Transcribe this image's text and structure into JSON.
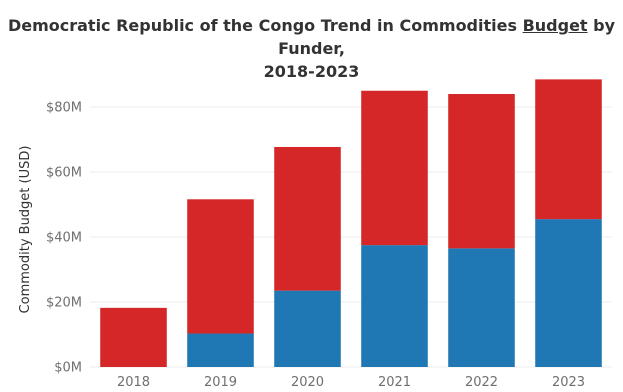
{
  "title": {
    "line1_before": "Democratic Republic of the Congo Trend in Commodities ",
    "line1_emph": "Budget",
    "line1_after": " by Funder,",
    "line2": "2018-2023"
  },
  "colors": {
    "series_a": "#1f77b4",
    "series_b": "#d62728",
    "grid": "#eeeeee",
    "tick_text": "#6f6f6f"
  },
  "chart_data": {
    "type": "bar",
    "stacked": true,
    "title": "Democratic Republic of the Congo Trend in Commodities Budget by Funder, 2018-2023",
    "xlabel": "",
    "ylabel": "Commodity Budget (USD)",
    "categories": [
      "2018",
      "2019",
      "2020",
      "2021",
      "2022",
      "2023"
    ],
    "series": [
      {
        "color": "#1f77b4",
        "values": [
          0,
          10.3,
          23.5,
          37.5,
          36.5,
          45.5
        ]
      },
      {
        "color": "#d62728",
        "values": [
          18.2,
          41.3,
          44.2,
          47.5,
          47.5,
          43.0
        ]
      }
    ],
    "ylim": [
      0,
      92
    ],
    "yticks": [
      0,
      20,
      40,
      60,
      80
    ],
    "ytick_labels": [
      "$0M",
      "$20M",
      "$40M",
      "$60M",
      "$80M"
    ],
    "grid": true,
    "legend": "none"
  }
}
